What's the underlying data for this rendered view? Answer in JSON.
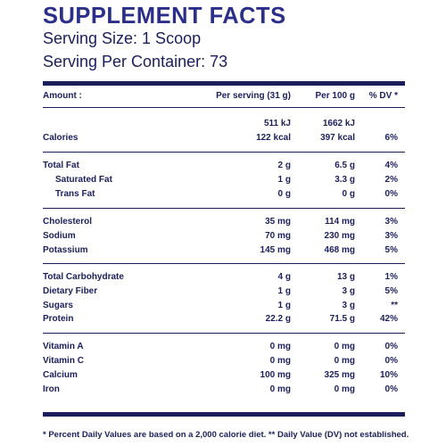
{
  "title": "SUPPLEMENT FACTS",
  "serving_size": "Serving Size: 1 Scoop",
  "servings_per_container": "Serving Per Container: 73",
  "header": {
    "amount": "Amount :",
    "per_serving": "Per serving (31 g)",
    "per_100g": "Per 100 g",
    "dv": "% DV *"
  },
  "energy": {
    "kj_serving": "511 kJ",
    "kj_100g": "1662 kJ"
  },
  "rows": [
    {
      "label": "Calories",
      "serving": "122 kcal",
      "per100": "397 kcal",
      "dv": "6%"
    },
    {
      "label": "Total Fat",
      "serving": "2 g",
      "per100": "6.5 g",
      "dv": "4%"
    },
    {
      "label": "Saturated Fat",
      "serving": "1 g",
      "per100": "3.3 g",
      "dv": "2%"
    },
    {
      "label": "Trans Fat",
      "serving": "0 g",
      "per100": "0 g",
      "dv": "0%"
    },
    {
      "label": "Cholesterol",
      "serving": "35 mg",
      "per100": "114 mg",
      "dv": "3%"
    },
    {
      "label": "Sodium",
      "serving": "70 mg",
      "per100": "230 mg",
      "dv": "3%"
    },
    {
      "label": "Potassium",
      "serving": "145 mg",
      "per100": "468 mg",
      "dv": "5%"
    },
    {
      "label": "Total Carbohydrate",
      "serving": "4 g",
      "per100": "13 g",
      "dv": "1%"
    },
    {
      "label": "Dietary Fiber",
      "serving": "1 g",
      "per100": "3 g",
      "dv": "5%"
    },
    {
      "label": "Sugars",
      "serving": "1 g",
      "per100": "3 g",
      "dv": "**"
    },
    {
      "label": "Protein",
      "serving": "22.2 g",
      "per100": "71.5 g",
      "dv": "42%"
    },
    {
      "label": "Vitamin A",
      "serving": "0 mg",
      "per100": "0 mg",
      "dv": "0%"
    },
    {
      "label": "Vitamin C",
      "serving": "0 mg",
      "per100": "0 mg",
      "dv": "0%"
    },
    {
      "label": "Calcium",
      "serving": "100 mg",
      "per100": "325 mg",
      "dv": "10%"
    },
    {
      "label": "Iron",
      "serving": "0 mg",
      "per100": "0 mg",
      "dv": "0%"
    }
  ],
  "footnote": "* Percent Daily Values are based on a 2,000 calorie diet. ** Daily Value (DV) not established.",
  "colors": {
    "title": "#2b2f8a",
    "text": "#1a1f5c"
  }
}
